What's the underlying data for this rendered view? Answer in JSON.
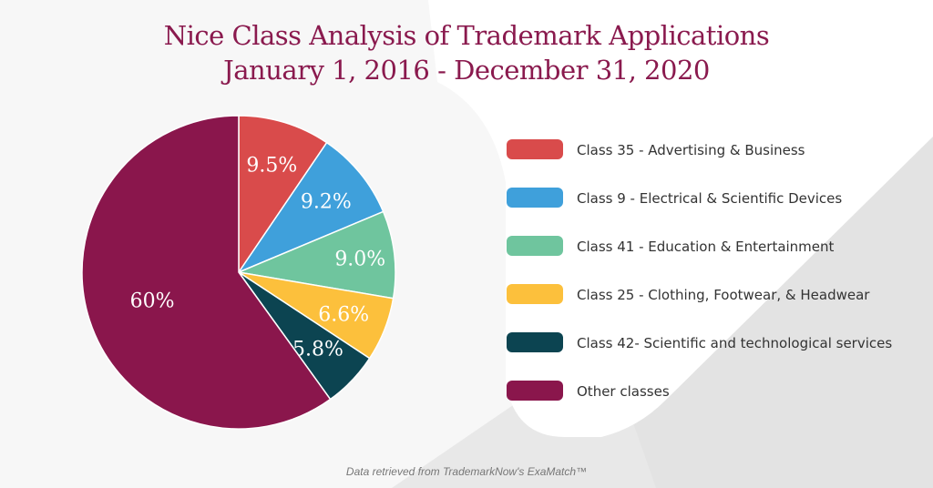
{
  "title_line1": "Nice Class Analysis of Trademark Applications",
  "title_line2": "January 1, 2016 - December 31, 2020",
  "footnote": "Data retrieved from TrademarkNow's ExaMatch™",
  "chart_data": {
    "type": "pie",
    "title": "Nice Class Analysis of Trademark Applications — January 1, 2016 - December 31, 2020",
    "legend_position": "right",
    "slices": [
      {
        "label": "Class 35 - Advertising & Business",
        "value": 9.5,
        "display": "9.5%",
        "color": "#d94b4b"
      },
      {
        "label": "Class 9 - Electrical & Scientific Devices",
        "value": 9.2,
        "display": "9.2%",
        "color": "#3fa0db"
      },
      {
        "label": "Class 41 - Education & Entertainment",
        "value": 9.0,
        "display": "9.0%",
        "color": "#6fc59e"
      },
      {
        "label": "Class 25 - Clothing, Footwear, & Headwear",
        "value": 6.6,
        "display": "6.6%",
        "color": "#fcc03c"
      },
      {
        "label": "Class 42- Scientific and technological services",
        "value": 5.8,
        "display": "5.8%",
        "color": "#0c4451"
      },
      {
        "label": "Other classes",
        "value": 60,
        "display": "60%",
        "color": "#8a164c"
      }
    ]
  }
}
